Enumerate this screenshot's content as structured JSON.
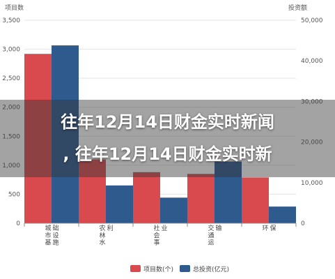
{
  "chart_data": {
    "type": "bar",
    "left_axis_unit": "项目数",
    "right_axis_unit": "投资额",
    "categories": [
      [
        "城市基",
        "础设施"
      ],
      [
        "农林水",
        "利"
      ],
      [
        "社会事",
        "业"
      ],
      [
        "交通运",
        "输"
      ],
      [
        "环",
        "保"
      ]
    ],
    "series": [
      {
        "name": "项目数(个)",
        "axis": "left",
        "color": "#d94a4e",
        "values": [
          2920,
          1100,
          880,
          850,
          790
        ]
      },
      {
        "name": "总投资(亿元)",
        "axis": "right",
        "color": "#2f5a8e",
        "values": [
          43800,
          9300,
          6300,
          15200,
          4100
        ]
      }
    ],
    "left_ylim": [
      0,
      3500
    ],
    "left_ticks": [
      "0",
      "500",
      "1,000",
      "1,500",
      "2,000",
      "2,500",
      "3,000",
      "3,500"
    ],
    "right_ylim": [
      0,
      50000
    ],
    "right_ticks": [
      "0",
      "10,000",
      "20,000",
      "30,000",
      "40,000",
      "50,000"
    ],
    "grid": true,
    "legend_position": "bottom"
  },
  "overlay": {
    "line1": "往年12月14日财金实时新闻",
    "line2": ", 往年12月14日财金实时新"
  }
}
